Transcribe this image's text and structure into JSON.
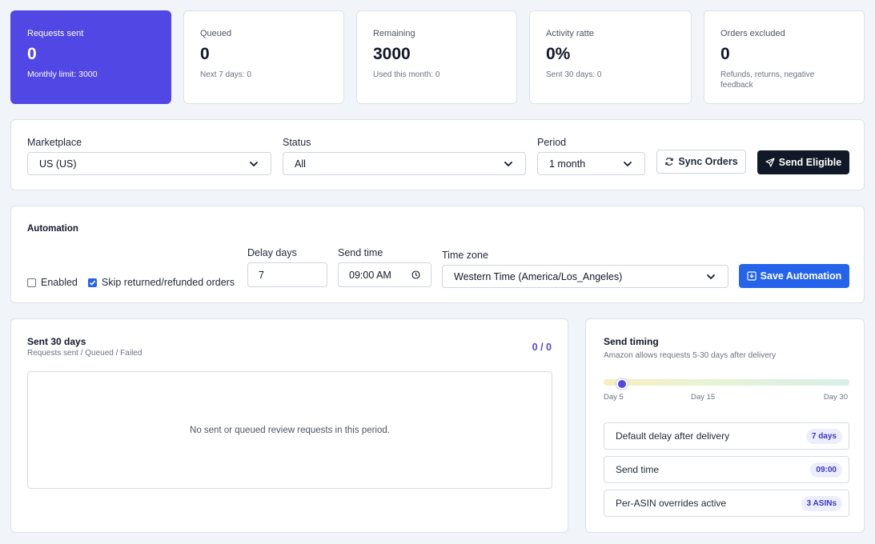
{
  "stats": [
    {
      "label": "Requests sent",
      "value": "0",
      "sub": "Monthly limit: 3000"
    },
    {
      "label": "Queued",
      "value": "0",
      "sub": "Next 7 days: 0"
    },
    {
      "label": "Remaining",
      "value": "3000",
      "sub": "Used this month: 0"
    },
    {
      "label": "Activity ratte",
      "value": "0%",
      "sub": "Sent 30 days: 0"
    },
    {
      "label": "Orders excluded",
      "value": "0",
      "sub": "Refunds, returns, negative feedback"
    }
  ],
  "filters": {
    "marketplace_label": "Marketplace",
    "marketplace_value": "US (US)",
    "status_label": "Status",
    "status_value": "All",
    "period_label": "Period",
    "period_value": "1 month",
    "sync_label": "Sync Orders",
    "send_label": "Send Eligible"
  },
  "automation": {
    "title": "Automation",
    "enabled_label": "Enabled",
    "enabled_checked": false,
    "skip_label": "Skip returned/refunded orders",
    "skip_checked": true,
    "delay_label": "Delay days",
    "delay_value": "7",
    "send_time_label": "Send time",
    "send_time_value": "09:00 AM",
    "timezone_label": "Time zone",
    "timezone_value": "Western Time (America/Los_Angeles)",
    "save_label": "Save Automation"
  },
  "sent": {
    "title": "Sent 30 days",
    "subtitle": "Requests sent / Queued / Failed",
    "ratio": "0 / 0",
    "empty_text": "No sent or queued review requests in this period."
  },
  "timing": {
    "title": "Send timing",
    "subtitle": "Amazon allows requests 5-30 days after delivery",
    "slider_value_day": 5,
    "tick_start": "Day 5",
    "tick_mid": "Day 15",
    "tick_end": "Day 30",
    "rows": [
      {
        "label": "Default delay after delivery",
        "badge": "7 days"
      },
      {
        "label": "Send time",
        "badge": "09:00"
      },
      {
        "label": "Per-ASIN overrides active",
        "badge": "3 ASINs"
      }
    ]
  },
  "colors": {
    "primary": "#5147e5",
    "accent_blue": "#2563eb",
    "dark_button": "#111827"
  }
}
